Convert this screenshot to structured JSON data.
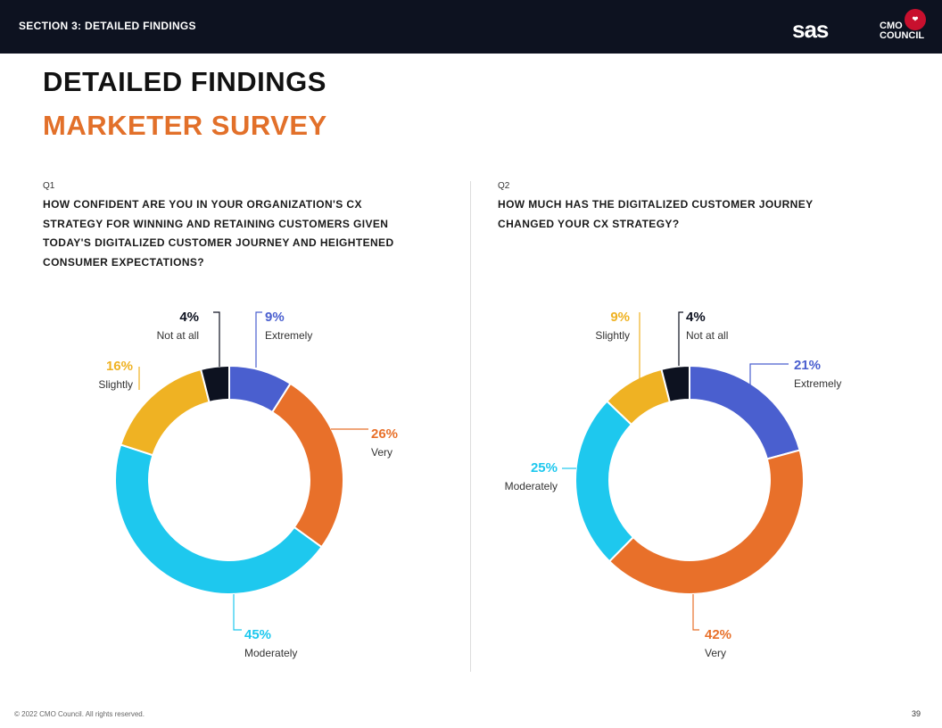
{
  "header": {
    "section_label": "SECTION 3: DETAILED FINDINGS",
    "logo_sas": "sas",
    "logo_cmo": "CMO",
    "logo_council": "COUNCIL"
  },
  "titles": {
    "main": "DETAILED FINDINGS",
    "sub": "MARKETER SURVEY"
  },
  "colors": {
    "extremely": "#4a5fcf",
    "very": "#e8702a",
    "moderately": "#1ec8ee",
    "slightly": "#efb223",
    "not_at_all": "#0d1220",
    "accent": "#e2702a"
  },
  "chart_data": [
    {
      "type": "pie",
      "id": "q1",
      "question_number": "Q1",
      "title": "HOW CONFIDENT ARE YOU IN YOUR ORGANIZATION'S CX STRATEGY FOR WINNING AND RETAINING CUSTOMERS GIVEN TODAY'S DIGITALIZED CUSTOMER JOURNEY AND HEIGHTENED CONSUMER EXPECTATIONS?",
      "title_lines": [
        "HOW CONFIDENT ARE YOU IN YOUR ORGANIZATION'S CX",
        "STRATEGY FOR WINNING AND RETAINING CUSTOMERS GIVEN",
        "TODAY'S DIGITALIZED CUSTOMER JOURNEY AND HEIGHTENED",
        "CONSUMER EXPECTATIONS?"
      ],
      "donut": true,
      "slices": [
        {
          "key": "extremely",
          "label": "Extremely",
          "value": 9,
          "pct": "9%"
        },
        {
          "key": "very",
          "label": "Very",
          "value": 26,
          "pct": "26%"
        },
        {
          "key": "moderately",
          "label": "Moderately",
          "value": 45,
          "pct": "45%"
        },
        {
          "key": "slightly",
          "label": "Slightly",
          "value": 16,
          "pct": "16%"
        },
        {
          "key": "not_at_all",
          "label": "Not at all",
          "value": 4,
          "pct": "4%"
        }
      ]
    },
    {
      "type": "pie",
      "id": "q2",
      "question_number": "Q2",
      "title": "HOW MUCH HAS THE DIGITALIZED CUSTOMER JOURNEY CHANGED YOUR CX STRATEGY?",
      "title_lines": [
        "HOW MUCH HAS THE DIGITALIZED CUSTOMER JOURNEY",
        "CHANGED YOUR CX STRATEGY?"
      ],
      "donut": true,
      "slices": [
        {
          "key": "extremely",
          "label": "Extremely",
          "value": 21,
          "pct": "21%"
        },
        {
          "key": "very",
          "label": "Very",
          "value": 42,
          "pct": "42%"
        },
        {
          "key": "moderately",
          "label": "Moderately",
          "value": 25,
          "pct": "25%"
        },
        {
          "key": "slightly",
          "label": "Slightly",
          "value": 9,
          "pct": "9%"
        },
        {
          "key": "not_at_all",
          "label": "Not at all",
          "value": 4,
          "pct": "4%"
        }
      ]
    }
  ],
  "footer": {
    "copyright": "© 2022 CMO Council. All rights reserved.",
    "page_number": "39"
  }
}
